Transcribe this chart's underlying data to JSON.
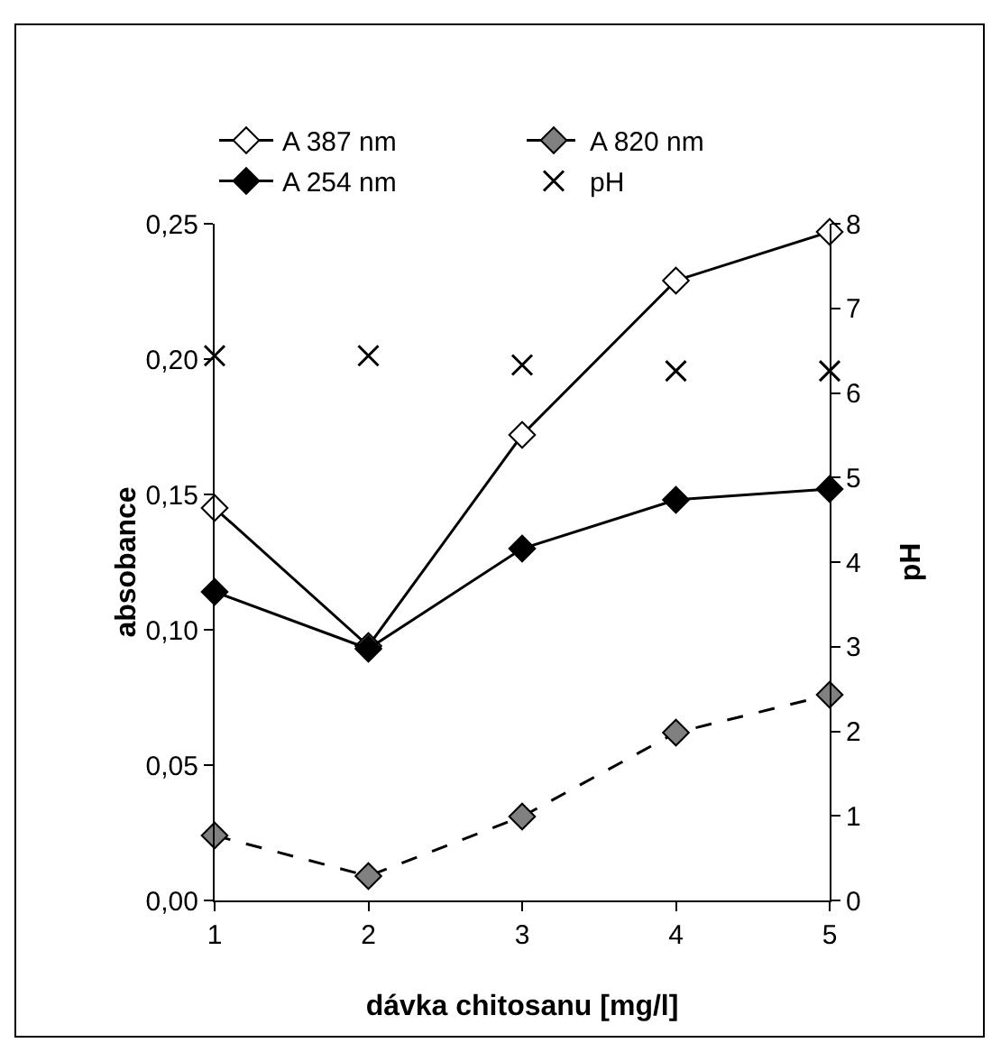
{
  "chart_data": {
    "type": "line",
    "xlabel": "dávka chitosanu [mg/l]",
    "ylabel": "absobance",
    "y2label": "pH",
    "x": [
      1,
      2,
      3,
      4,
      5
    ],
    "series": [
      {
        "name": "A 387 nm",
        "color": "#ffffff",
        "marker": "diamond",
        "line_style": "solid",
        "values": [
          0.145,
          0.094,
          0.172,
          0.229,
          0.247
        ]
      },
      {
        "name": "A 820 nm",
        "color": "#808080",
        "marker": "diamond",
        "line_style": "dashed",
        "values": [
          0.024,
          0.009,
          0.031,
          0.062,
          0.076
        ]
      },
      {
        "name": "A 254 nm",
        "color": "#000000",
        "marker": "diamond",
        "line_style": "solid",
        "values": [
          0.114,
          0.093,
          0.13,
          0.148,
          0.152
        ]
      },
      {
        "name": "pH",
        "type": "scatter",
        "axis": "y2",
        "color": "#000000",
        "marker": "cross",
        "values": [
          6.44,
          6.44,
          6.33,
          6.26,
          6.26
        ]
      }
    ],
    "xlim": [
      1,
      5
    ],
    "xticks": [
      1,
      2,
      3,
      4,
      5
    ],
    "ylim": [
      0,
      0.25
    ],
    "yticks": [
      {
        "value": 0,
        "label": "0,00"
      },
      {
        "value": 0.05,
        "label": "0,05"
      },
      {
        "value": 0.1,
        "label": "0,10"
      },
      {
        "value": 0.15,
        "label": "0,15"
      },
      {
        "value": 0.2,
        "label": "0,20"
      },
      {
        "value": 0.25,
        "label": "0,25"
      }
    ],
    "y2lim": [
      0,
      8
    ],
    "y2ticks": [
      0,
      1,
      2,
      3,
      4,
      5,
      6,
      7,
      8
    ],
    "grid": false,
    "legend": "top"
  }
}
